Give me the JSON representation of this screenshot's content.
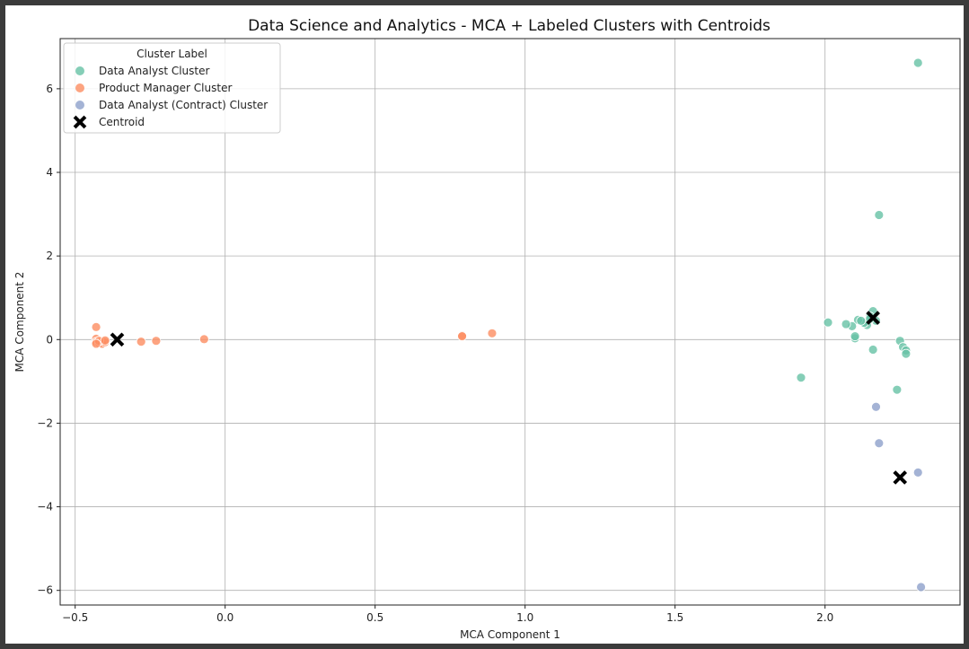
{
  "chart_data": {
    "type": "scatter",
    "title": "Data Science and Analytics - MCA + Labeled Clusters with Centroids",
    "xlabel": "MCA Component 1",
    "ylabel": "MCA Component 2",
    "xlim": [
      -0.55,
      2.45
    ],
    "ylim": [
      -6.35,
      7.2
    ],
    "xticks": [
      {
        "value": -0.5,
        "label": "−0.5"
      },
      {
        "value": 0.0,
        "label": "0.0"
      },
      {
        "value": 0.5,
        "label": "0.5"
      },
      {
        "value": 1.0,
        "label": "1.0"
      },
      {
        "value": 1.5,
        "label": "1.5"
      },
      {
        "value": 2.0,
        "label": "2.0"
      }
    ],
    "yticks": [
      {
        "value": -6,
        "label": "−6"
      },
      {
        "value": -4,
        "label": "−4"
      },
      {
        "value": -2,
        "label": "−2"
      },
      {
        "value": 0,
        "label": "0"
      },
      {
        "value": 2,
        "label": "2"
      },
      {
        "value": 4,
        "label": "4"
      },
      {
        "value": 6,
        "label": "6"
      }
    ],
    "grid": true,
    "legend": {
      "title": "Cluster Label",
      "placement": "top-left"
    },
    "series": [
      {
        "name": "Data Analyst Cluster",
        "color": "#66c2a5",
        "marker": "circle",
        "points": [
          [
            2.31,
            6.62
          ],
          [
            2.18,
            2.98
          ],
          [
            2.16,
            0.68
          ],
          [
            2.15,
            0.55
          ],
          [
            2.17,
            0.45
          ],
          [
            2.14,
            0.35
          ],
          [
            2.13,
            0.4
          ],
          [
            2.11,
            0.47
          ],
          [
            2.09,
            0.32
          ],
          [
            2.07,
            0.37
          ],
          [
            2.01,
            0.41
          ],
          [
            2.1,
            0.03
          ],
          [
            2.1,
            0.08
          ],
          [
            2.16,
            -0.24
          ],
          [
            2.25,
            -0.03
          ],
          [
            2.26,
            -0.18
          ],
          [
            2.27,
            -0.26
          ],
          [
            2.27,
            -0.34
          ],
          [
            2.24,
            -1.2
          ],
          [
            1.92,
            -0.91
          ],
          [
            2.15,
            0.5
          ],
          [
            2.12,
            0.45
          ]
        ]
      },
      {
        "name": "Product Manager Cluster",
        "color": "#fc8d62",
        "marker": "circle",
        "points": [
          [
            -0.43,
            0.3
          ],
          [
            -0.43,
            0.02
          ],
          [
            -0.43,
            -0.06
          ],
          [
            -0.42,
            -0.08
          ],
          [
            -0.41,
            -0.04
          ],
          [
            -0.41,
            -0.1
          ],
          [
            -0.4,
            -0.06
          ],
          [
            -0.42,
            -0.03
          ],
          [
            -0.43,
            -0.1
          ],
          [
            -0.4,
            -0.02
          ],
          [
            -0.28,
            -0.05
          ],
          [
            -0.23,
            -0.03
          ],
          [
            -0.07,
            0.01
          ],
          [
            0.79,
            0.1
          ],
          [
            0.79,
            0.08
          ],
          [
            0.89,
            0.15
          ]
        ]
      },
      {
        "name": "Data Analyst (Contract) Cluster",
        "color": "#8da0cb",
        "marker": "circle",
        "points": [
          [
            2.17,
            -1.61
          ],
          [
            2.18,
            -2.48
          ],
          [
            2.31,
            -3.18
          ],
          [
            2.32,
            -5.92
          ]
        ]
      },
      {
        "name": "Centroid",
        "color": "#000000",
        "marker": "x",
        "points": [
          [
            -0.36,
            0.0
          ],
          [
            2.16,
            0.52
          ],
          [
            2.25,
            -3.3
          ]
        ]
      }
    ]
  }
}
